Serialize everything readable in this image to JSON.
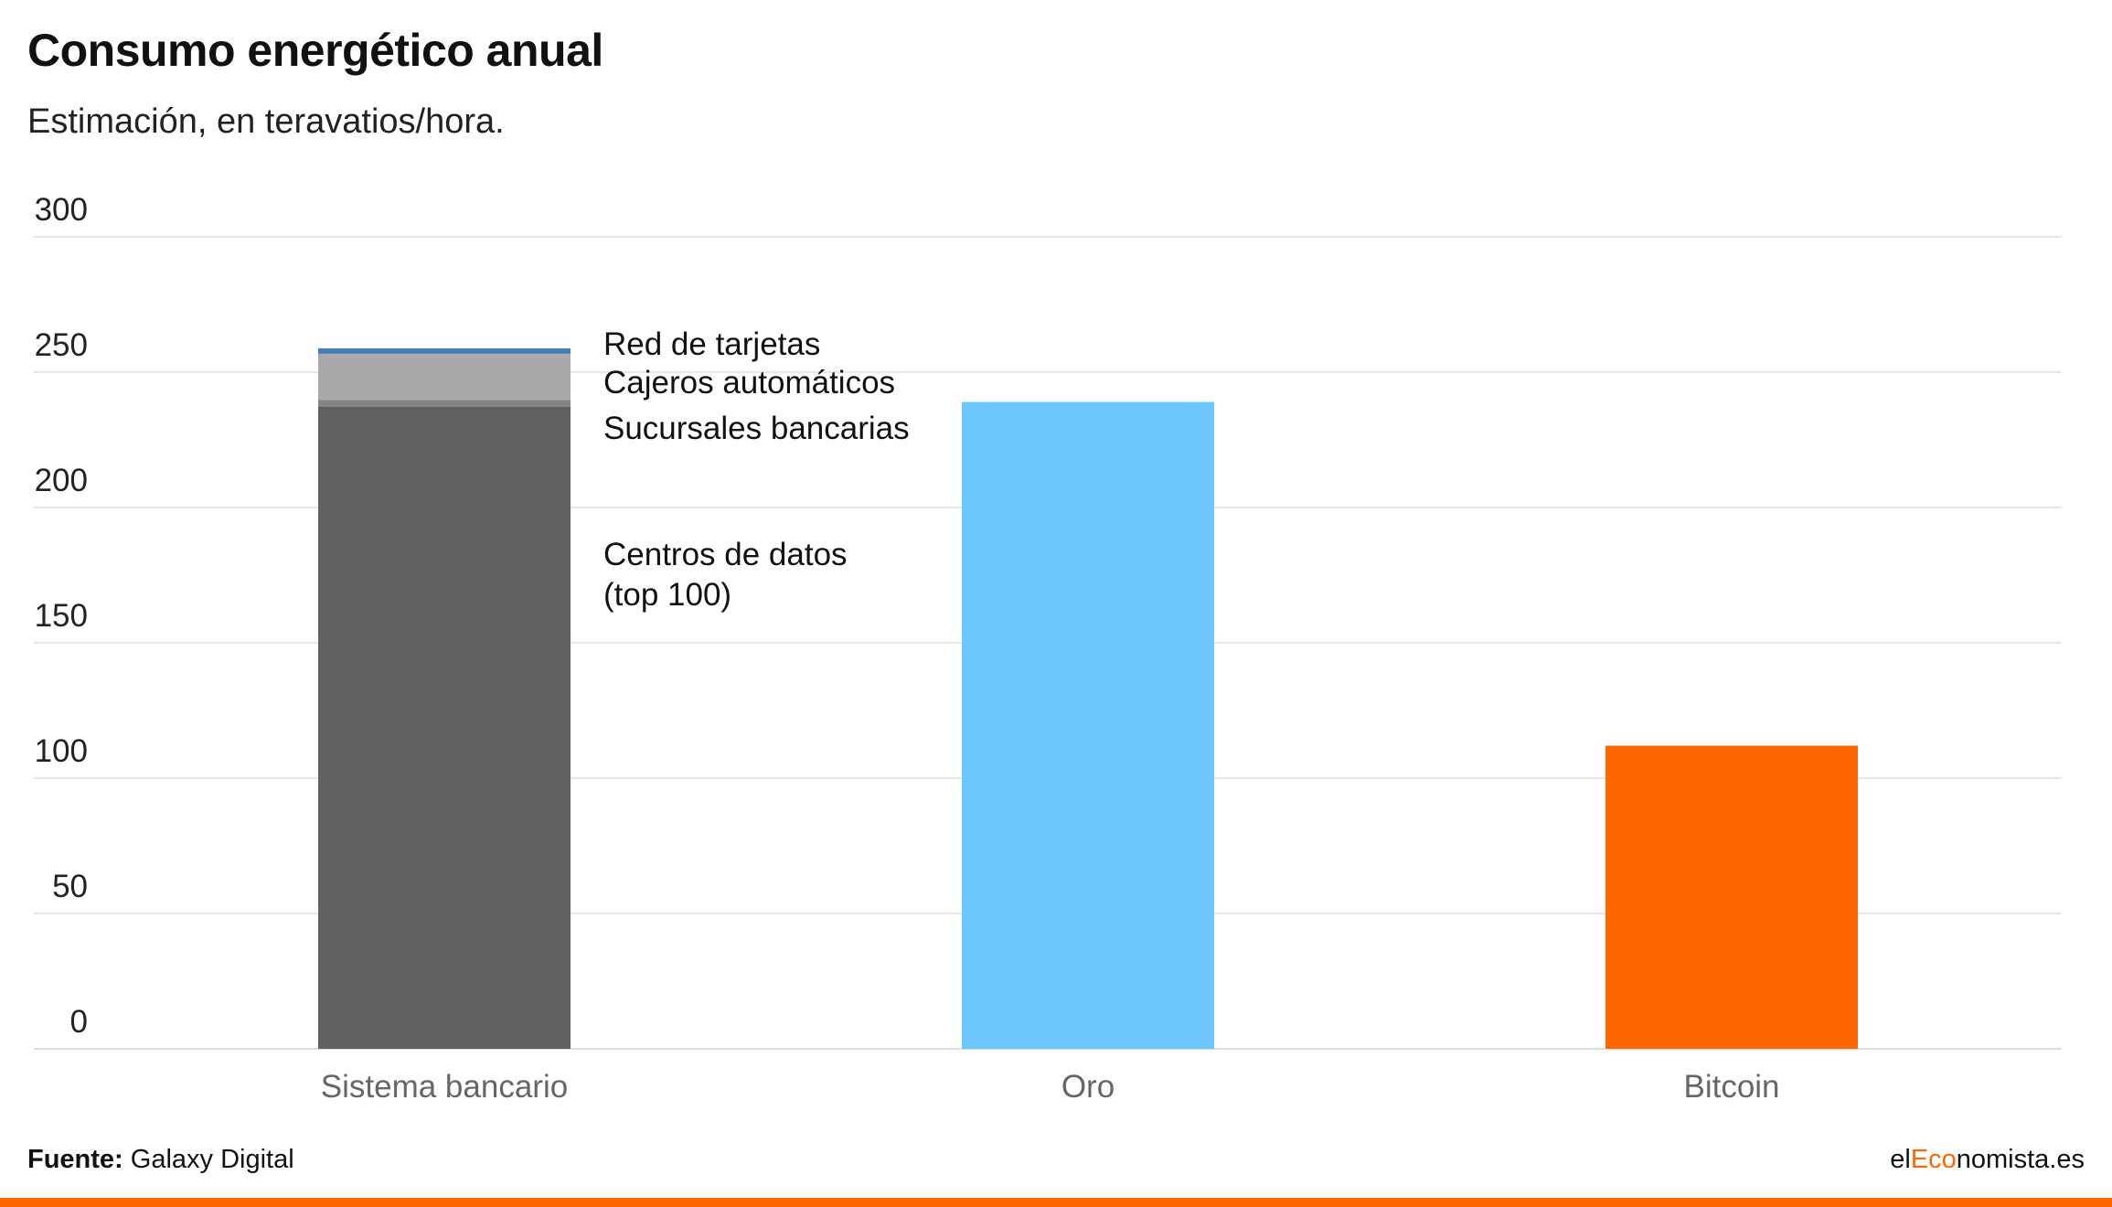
{
  "chart_data": {
    "type": "bar",
    "stacked": true,
    "title": "Consumo energético anual",
    "subtitle": "Estimación, en teravatios/hora.",
    "xlabel": "",
    "ylabel": "",
    "ylim": [
      0,
      300
    ],
    "yticks": [
      0,
      50,
      100,
      150,
      200,
      250,
      300
    ],
    "grid": true,
    "categories": [
      "Sistema bancario",
      "Oro",
      "Bitcoin"
    ],
    "series": [
      {
        "name": "Centros de datos (top 100)",
        "label_lines": [
          "Centros de datos",
          "(top 100)"
        ],
        "color": "#616161",
        "values": [
          237.3,
          null,
          null
        ]
      },
      {
        "name": "Sucursales bancarias",
        "label_lines": [
          "Sucursales bancarias"
        ],
        "color": "#858585",
        "values": [
          2.5,
          null,
          null
        ]
      },
      {
        "name": "Cajeros automáticos",
        "label_lines": [
          "Cajeros automáticos"
        ],
        "color": "#a9a9a9",
        "values": [
          17,
          null,
          null
        ]
      },
      {
        "name": "Red de tarjetas",
        "label_lines": [
          "Red de tarjetas"
        ],
        "color": "#4a7ab5",
        "values": [
          2,
          null,
          null
        ]
      },
      {
        "name": "Oro",
        "color": "#6ec6ff",
        "values": [
          null,
          239,
          null
        ]
      },
      {
        "name": "Bitcoin",
        "color": "#ff6600",
        "values": [
          null,
          null,
          112
        ]
      }
    ]
  },
  "footer": {
    "source_label": "Fuente:",
    "source": "Galaxy Digital",
    "brand_prefix": "el",
    "brand_highlight": "Eco",
    "brand_suffix": "nomista.es"
  },
  "colors": {
    "accent": "#ff6600",
    "grid": "#e6e6e6"
  }
}
